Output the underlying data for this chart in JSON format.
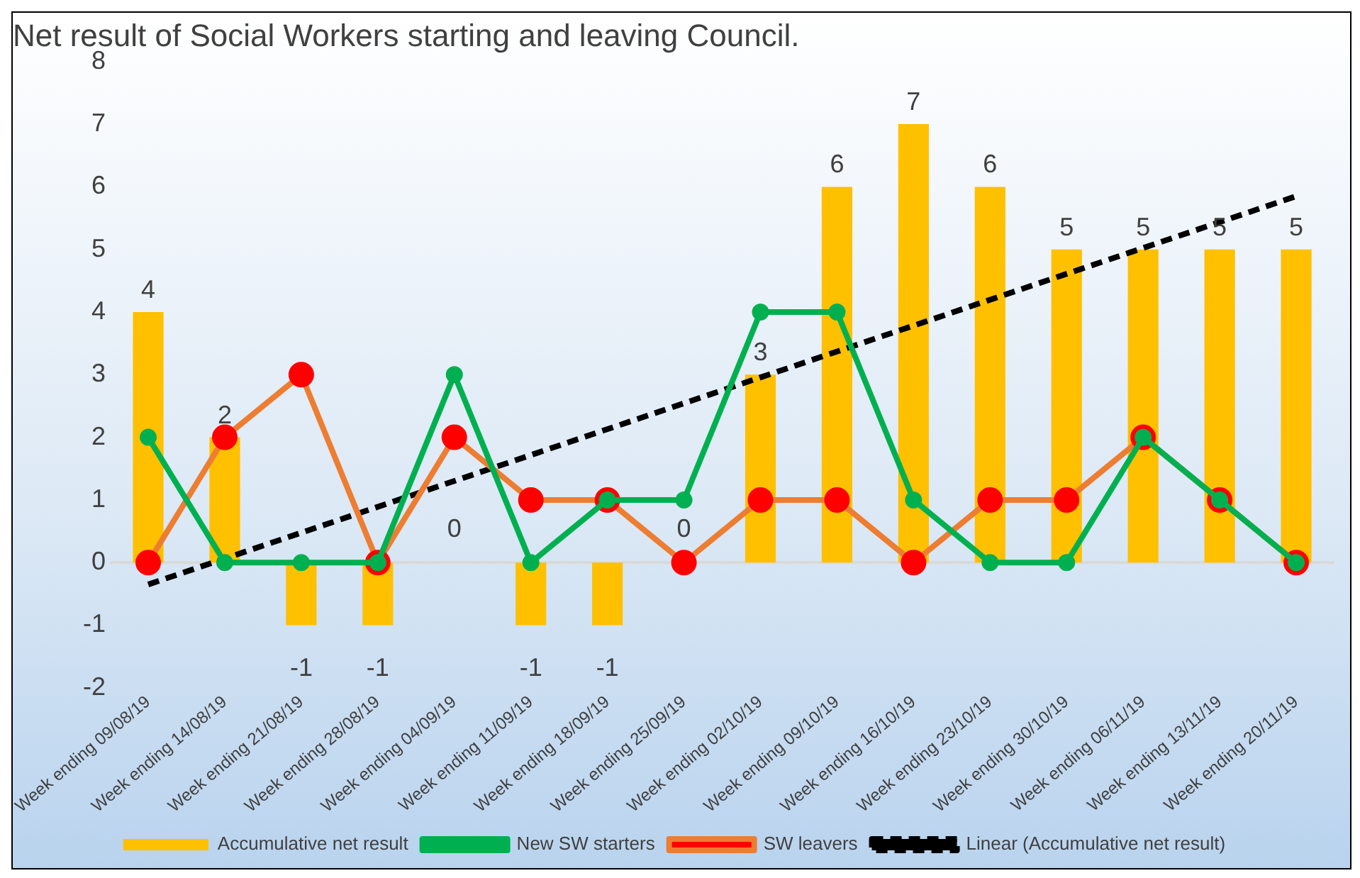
{
  "chart_data": {
    "type": "bar",
    "title": "Net result of Social Workers starting and leaving Council.",
    "categories": [
      "Week ending 09/08/19",
      "Week ending 14/08/19",
      "Week ending 21/08/19",
      "Week ending 28/08/19",
      "Week ending 04/09/19",
      "Week ending 11/09/19",
      "Week ending 18/09/19",
      "Week ending 25/09/19",
      "Week ending 02/10/19",
      "Week ending 09/10/19",
      "Week ending 16/10/19",
      "Week ending 23/10/19",
      "Week ending 30/10/19",
      "Week ending 06/11/19",
      "Week ending 13/11/19",
      "Week ending 20/11/19"
    ],
    "series": [
      {
        "name": "Accumulative net result",
        "color": "#ffc000",
        "values": [
          4,
          2,
          -1,
          -1,
          0,
          -1,
          -1,
          0,
          3,
          6,
          7,
          6,
          5,
          5,
          5,
          5
        ],
        "value_labels": [
          "4",
          "2",
          "-1",
          "-1",
          "0",
          "-1",
          "-1",
          "0",
          "3",
          "6",
          "7",
          "6",
          "5",
          "5",
          "5",
          "5"
        ]
      },
      {
        "type": "line",
        "name": "New SW starters",
        "color": "#00b050",
        "marker": "circle",
        "line_style": "solid",
        "values": [
          2,
          0,
          0,
          0,
          3,
          0,
          1,
          1,
          4,
          4,
          1,
          0,
          0,
          2,
          1,
          0
        ]
      },
      {
        "type": "line",
        "name": "SW leavers",
        "color": "#ed7d31",
        "colors": [
          "#ff0000",
          "#ff0000",
          "#ff0000",
          "#ff0000",
          "#ff0000",
          "#ff0000",
          "#ff0000",
          "#ff0000",
          "#ff0000",
          "#ff0000",
          "#ff0000",
          "#ff0000",
          "#ff0000",
          "#ff0000",
          "#ff0000",
          "#ff0000"
        ],
        "marker": "circle",
        "line_style": "solid",
        "values": [
          0,
          2,
          3,
          0,
          2,
          1,
          1,
          0,
          1,
          1,
          0,
          1,
          1,
          2,
          1,
          0
        ]
      },
      {
        "type": "line",
        "name": "Linear (Accumulative net result)",
        "color": "#000000",
        "marker": "none",
        "line_style": "dashed",
        "x": [
          "Week ending 09/08/19",
          "Week ending 20/11/19"
        ],
        "values": [
          -0.35,
          5.85
        ]
      }
    ],
    "ylim": [
      -2,
      8
    ],
    "yticks": [
      -2,
      -1,
      0,
      1,
      2,
      3,
      4,
      5,
      6,
      7,
      8
    ],
    "grid": false,
    "ref_lines": [
      {
        "axis": "y",
        "value": 0,
        "color": "#d9d9d9"
      }
    ],
    "legend": "bottom"
  }
}
